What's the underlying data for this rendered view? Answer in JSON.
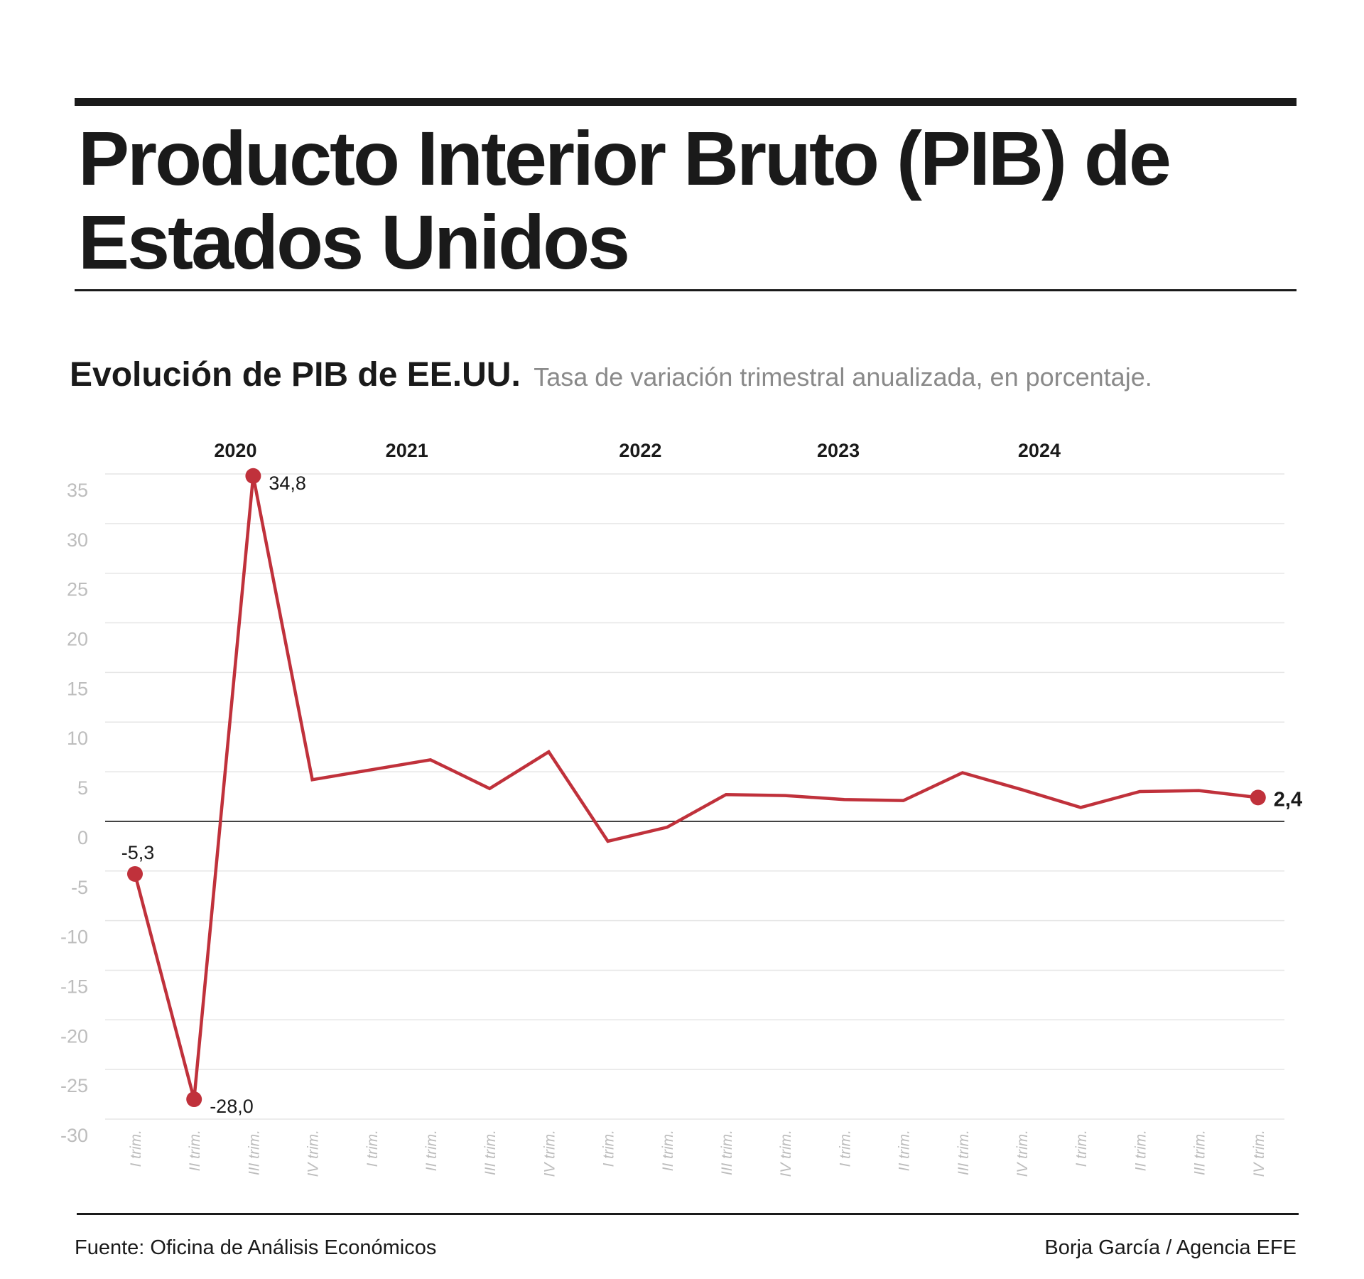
{
  "title": "Producto Interior Bruto (PIB) de Estados Unidos",
  "subtitle": {
    "main": "Evolución de PIB de EE.UU.",
    "description": "Tasa de variación trimestral anualizada, en porcentaje."
  },
  "footer": {
    "source": "Fuente: Oficina de Análisis Económicos",
    "credit": "Borja García / Agencia EFE"
  },
  "colors": {
    "series": "#c0313b",
    "text": "#1a1a1a",
    "axis_tick": "#bdbdbd",
    "grid": "#e6e6e6",
    "subtitle_light": "#8a8a8a"
  },
  "chart_data": {
    "type": "line",
    "x": [
      "I trim.",
      "II trim.",
      "III trim.",
      "IV trim.",
      "I trim.",
      "II trim.",
      "III trim.",
      "IV trim.",
      "I trim.",
      "II trim.",
      "III trim.",
      "IV trim.",
      "I trim.",
      "II trim.",
      "III trim.",
      "IV trim.",
      "I trim.",
      "II trim.",
      "III trim.",
      "IV trim."
    ],
    "years": [
      {
        "label": "2020",
        "start": 0
      },
      {
        "label": "2021",
        "start": 4
      },
      {
        "label": "2022",
        "start": 8
      },
      {
        "label": "2023",
        "start": 12
      },
      {
        "label": "2024",
        "start": 16
      }
    ],
    "series": [
      {
        "values": [
          -5.3,
          -28.0,
          34.8,
          4.2,
          5.2,
          6.2,
          3.3,
          7.0,
          -2.0,
          -0.6,
          2.7,
          2.6,
          2.2,
          2.1,
          4.9,
          3.2,
          1.4,
          3.0,
          3.1,
          2.4
        ]
      }
    ],
    "labels": [
      {
        "index": 0,
        "text": "-5,3",
        "pos": "above"
      },
      {
        "index": 1,
        "text": "-28,0",
        "pos": "right"
      },
      {
        "index": 2,
        "text": "34,8",
        "pos": "right"
      },
      {
        "index": 19,
        "text": "2,4",
        "pos": "right",
        "bold": true
      }
    ],
    "markers": [
      0,
      1,
      2,
      19
    ],
    "yticks": [
      35,
      30,
      25,
      20,
      15,
      10,
      5,
      0,
      -5,
      -10,
      -15,
      -20,
      -25,
      -30
    ],
    "ylim": [
      -30,
      35
    ],
    "grid": true,
    "zero_line": true,
    "xlabel": "",
    "ylabel": ""
  }
}
